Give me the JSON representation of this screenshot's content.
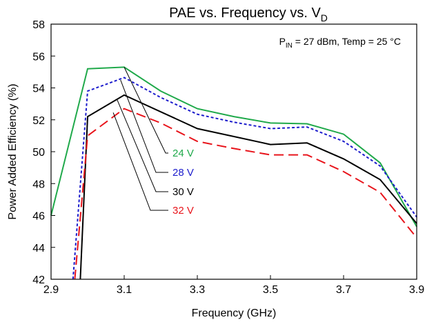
{
  "chart_data": {
    "type": "line",
    "title": {
      "main": "PAE vs. Frequency vs. V",
      "sub": "D"
    },
    "xlabel": "Frequency (GHz)",
    "ylabel": "Power Added Efficiency (%)",
    "xlim": [
      2.9,
      3.9
    ],
    "ylim": [
      42,
      58
    ],
    "xticks": [
      2.9,
      3.1,
      3.3,
      3.5,
      3.7,
      3.9
    ],
    "xtick_labels": [
      "2.9",
      "3.1",
      "3.3",
      "3.5",
      "3.7",
      "3.9"
    ],
    "yticks": [
      42,
      44,
      46,
      48,
      50,
      52,
      54,
      56,
      58
    ],
    "ytick_labels": [
      "42",
      "44",
      "46",
      "48",
      "50",
      "52",
      "54",
      "56",
      "58"
    ],
    "grid": false,
    "annotation": {
      "p": "P",
      "sub": "IN",
      "rest": " = 27 dBm, Temp = 25 °C"
    },
    "series": [
      {
        "name": "24 V",
        "color": "#1fa94a",
        "dash": "solid",
        "x": [
          2.9,
          3.0,
          3.1,
          3.2,
          3.3,
          3.4,
          3.5,
          3.6,
          3.7,
          3.8,
          3.9
        ],
        "y": [
          46.0,
          55.2,
          55.3,
          53.8,
          52.7,
          52.2,
          51.8,
          51.75,
          51.1,
          49.3,
          45.3
        ]
      },
      {
        "name": "28 V",
        "color": "#1c1ccc",
        "dash": "short",
        "x": [
          2.96,
          3.0,
          3.1,
          3.2,
          3.3,
          3.4,
          3.5,
          3.6,
          3.7,
          3.8,
          3.9
        ],
        "y": [
          42.0,
          53.8,
          54.65,
          53.4,
          52.35,
          51.85,
          51.45,
          51.55,
          50.65,
          49.1,
          45.9
        ]
      },
      {
        "name": "30 V",
        "color": "#000000",
        "dash": "solid",
        "x": [
          2.98,
          3.0,
          3.1,
          3.2,
          3.3,
          3.4,
          3.5,
          3.6,
          3.7,
          3.8,
          3.9
        ],
        "y": [
          42.0,
          52.2,
          53.55,
          52.5,
          51.45,
          50.95,
          50.45,
          50.55,
          49.55,
          48.25,
          45.5
        ]
      },
      {
        "name": "32 V",
        "color": "#e8141b",
        "dash": "long",
        "x": [
          2.965,
          3.0,
          3.1,
          3.2,
          3.3,
          3.4,
          3.5,
          3.6,
          3.7,
          3.8,
          3.9
        ],
        "y": [
          42.0,
          51.0,
          52.7,
          51.8,
          50.65,
          50.2,
          49.8,
          49.8,
          48.75,
          47.45,
          44.6
        ]
      }
    ]
  }
}
